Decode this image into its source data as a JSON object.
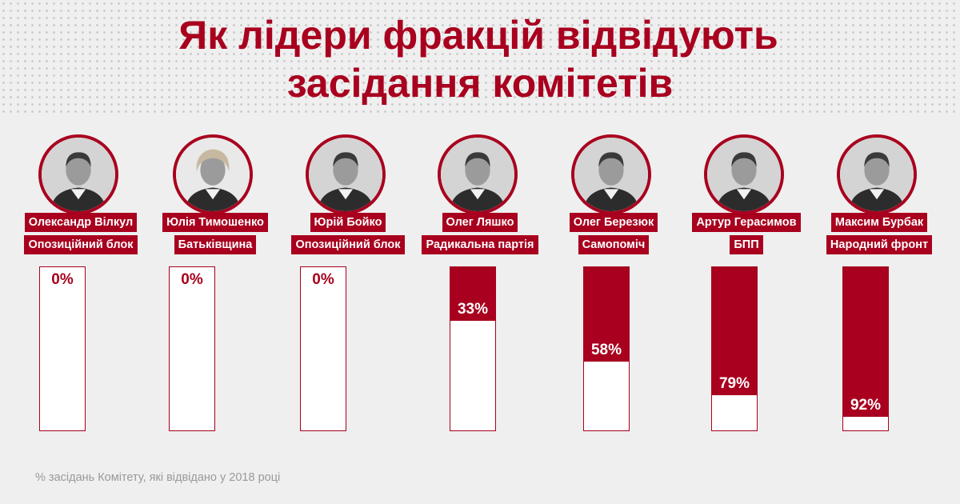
{
  "header": {
    "title_line1": "Як лідери фракцій відвідують",
    "title_line2": "засідання комітетів"
  },
  "colors": {
    "accent": "#a8001e",
    "background": "#efefef",
    "bar_empty": "#ffffff"
  },
  "chart_data": {
    "type": "bar",
    "title": "Як лідери фракцій відвідують засідання комітетів",
    "ylim": [
      0,
      100
    ],
    "categories": [
      "Олександр Вілкул",
      "Юлія Тимошенко",
      "Юрій Бойко",
      "Олег Ляшко",
      "Олег Березюк",
      "Артур Герасимов",
      "Максим Бурбак"
    ],
    "series": [
      {
        "values": [
          0,
          0,
          0,
          33,
          58,
          79,
          92
        ]
      }
    ],
    "leaders": [
      {
        "name": "Олександр Вілкул",
        "party": "Опозиційний блок",
        "value": 0,
        "label": "0%"
      },
      {
        "name": "Юлія Тимошенко",
        "party": "Батьківщина",
        "value": 0,
        "label": "0%"
      },
      {
        "name": "Юрій Бойко",
        "party": "Опозиційний блок",
        "value": 0,
        "label": "0%"
      },
      {
        "name": "Олег Ляшко",
        "party": "Радикальна партія",
        "value": 33,
        "label": "33%"
      },
      {
        "name": "Олег Березюк",
        "party": "Самопоміч",
        "value": 58,
        "label": "58%"
      },
      {
        "name": "Артур Герасимов",
        "party": "БПП",
        "value": 79,
        "label": "79%"
      },
      {
        "name": "Максим Бурбак",
        "party": "Народний фронт",
        "value": 92,
        "label": "92%"
      }
    ],
    "footnote": "% засідань Комітету, які відвідано у 2018 році",
    "grid": false,
    "legend": "none"
  },
  "icons": {
    "avatar": "person-photo-icon"
  }
}
